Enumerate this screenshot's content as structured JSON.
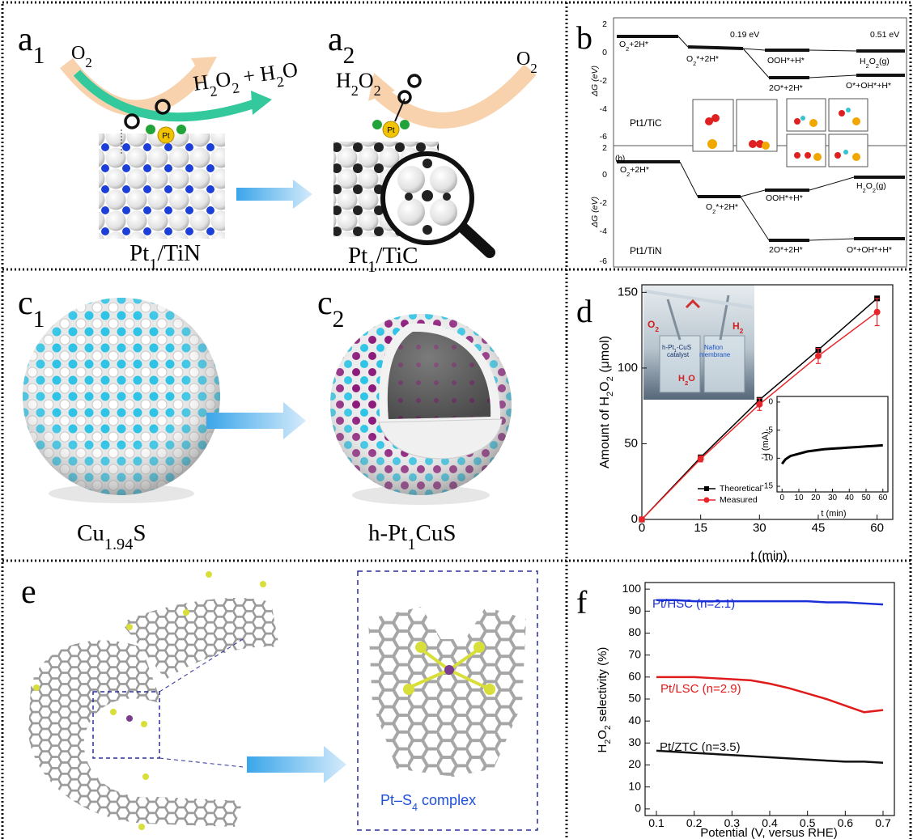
{
  "panels": {
    "a": {
      "label_1": [
        "a",
        "1"
      ],
      "label_2": [
        "a",
        "2"
      ],
      "reactant_left": [
        "O",
        "2"
      ],
      "products_left": [
        "H",
        "2",
        "O",
        "2",
        " + H",
        "2",
        "O"
      ],
      "product_right": [
        "H",
        "2",
        "O",
        "2"
      ],
      "reactant_right": [
        "O",
        "2"
      ],
      "metal_left": "Pt",
      "metal_right": "Pt",
      "catalyst_left": [
        "Pt",
        "1",
        "/TiN"
      ],
      "catalyst_right": [
        "Pt",
        "1",
        "/TiC"
      ]
    },
    "b": {
      "label": "b",
      "axis_label_top": "ΔG (eV)",
      "axis_label_bottom": "ΔG (eV)",
      "ticks_top": [
        2,
        0,
        -2,
        -4,
        -6
      ],
      "ticks_bottom": [
        2,
        0,
        -2,
        -4,
        -6
      ],
      "sublabel": "(b)",
      "top": {
        "catalyst": "Pt1/TiC",
        "barriers": [
          "0.19 eV",
          "0.51 eV"
        ],
        "states": [
          [
            "O",
            "2",
            "+2H*"
          ],
          [
            "O",
            "2",
            "*+2H*"
          ],
          "OOH*+H*",
          [
            "H",
            "2",
            "O",
            "2",
            "(g)"
          ],
          "2O*+2H*",
          "O*+OH*+H*"
        ]
      },
      "bottom": {
        "catalyst": "Pt1/TiN",
        "states": [
          [
            "O",
            "2",
            "+2H*"
          ],
          [
            "O",
            "2",
            "*+2H*"
          ],
          "OOH*+H*",
          [
            "H",
            "2",
            "O",
            "2",
            "(g)"
          ],
          "2O*+2H*",
          "O*+OH*+H*"
        ]
      }
    },
    "c": {
      "label_1": [
        "c",
        "1"
      ],
      "label_2": [
        "c",
        "2"
      ],
      "sample_left": [
        "Cu",
        "1.94",
        "S"
      ],
      "sample_right": [
        "h-Pt",
        "1",
        "CuS"
      ]
    },
    "d": {
      "label": "d",
      "photo": {
        "gas_left": [
          "O",
          "2"
        ],
        "gas_right": [
          "H",
          "2"
        ],
        "catalyst": [
          "h-Pt",
          "1",
          "-CuS"
        ],
        "catalyst_word": "catalyst",
        "membrane_1": "Nafion",
        "membrane_2": "membrane",
        "product": [
          "H",
          "2",
          "O"
        ]
      }
    },
    "e": {
      "label": "e",
      "complex": [
        "Pt–S",
        "4",
        " complex"
      ]
    },
    "f": {
      "label": "f"
    }
  },
  "chart_data": [
    {
      "type": "line",
      "x_label": "t (min)",
      "y_label": [
        "Amount of H",
        "2",
        "O",
        "2",
        " (μmol)"
      ],
      "x": [
        0,
        15,
        30,
        45,
        60
      ],
      "xlim": [
        0,
        64
      ],
      "ylim": [
        0,
        155
      ],
      "xticks": [
        0,
        15,
        30,
        45,
        60
      ],
      "yticks": [
        0,
        50,
        100,
        150
      ],
      "legend": "lower-left",
      "series": [
        {
          "name": "Theoretical",
          "color": "#000000",
          "marker": "square",
          "values": [
            0,
            41,
            79,
            112,
            146
          ]
        },
        {
          "name": "Measured",
          "color": "#e8262a",
          "marker": "circle",
          "values": [
            0,
            40,
            76,
            108,
            137
          ],
          "errors": [
            0,
            2,
            4,
            5,
            9
          ]
        }
      ]
    },
    {
      "type": "line",
      "x_label": "t (min)",
      "y_label": "j (mA)",
      "x": [
        0,
        2,
        5,
        10,
        15,
        20,
        25,
        30,
        35,
        40,
        45,
        50,
        55,
        60
      ],
      "xlim": [
        -3,
        63
      ],
      "ylim": [
        -16,
        1
      ],
      "xticks": [
        0,
        10,
        20,
        30,
        40,
        50,
        60
      ],
      "yticks": [
        0,
        -5,
        -10,
        -15
      ],
      "series": [
        {
          "color": "#000000",
          "values": [
            -11,
            -10.2,
            -9.6,
            -9.2,
            -8.8,
            -8.6,
            -8.4,
            -8.3,
            -8.2,
            -8.1,
            -8,
            -7.9,
            -7.8,
            -7.7
          ]
        }
      ]
    },
    {
      "type": "line",
      "x_label": "Potential (V, versus RHE)",
      "y_label": [
        "H",
        "2",
        "O",
        "2",
        " selectivity (%)"
      ],
      "x": [
        0.1,
        0.15,
        0.2,
        0.25,
        0.3,
        0.35,
        0.4,
        0.45,
        0.5,
        0.55,
        0.6,
        0.65,
        0.7
      ],
      "xlim": [
        0.07,
        0.73
      ],
      "ylim": [
        -3,
        103
      ],
      "xticks": [
        0.1,
        0.2,
        0.3,
        0.4,
        0.5,
        0.6,
        0.7
      ],
      "yticks": [
        0,
        10,
        20,
        30,
        40,
        50,
        60,
        70,
        80,
        90,
        100
      ],
      "legend": "inline",
      "series": [
        {
          "name": "Pt/HSC (n=2.1)",
          "color": "#1a2fd6",
          "values": [
            95,
            95,
            94.5,
            94.5,
            94.5,
            94.5,
            94.5,
            94.5,
            94.5,
            94,
            94,
            93.5,
            93
          ]
        },
        {
          "name": "Pt/LSC (n=2.9)",
          "color": "#e01b1b",
          "values": [
            60,
            60,
            60,
            59.5,
            59,
            58.5,
            57,
            55,
            52.5,
            50,
            47,
            44,
            45
          ]
        },
        {
          "name": "Pt/ZTC (n=3.5)",
          "color": "#111111",
          "values": [
            26.5,
            26,
            25.5,
            25,
            24.5,
            24,
            23.5,
            23,
            22.5,
            22,
            21.5,
            21.5,
            21
          ]
        }
      ]
    }
  ]
}
